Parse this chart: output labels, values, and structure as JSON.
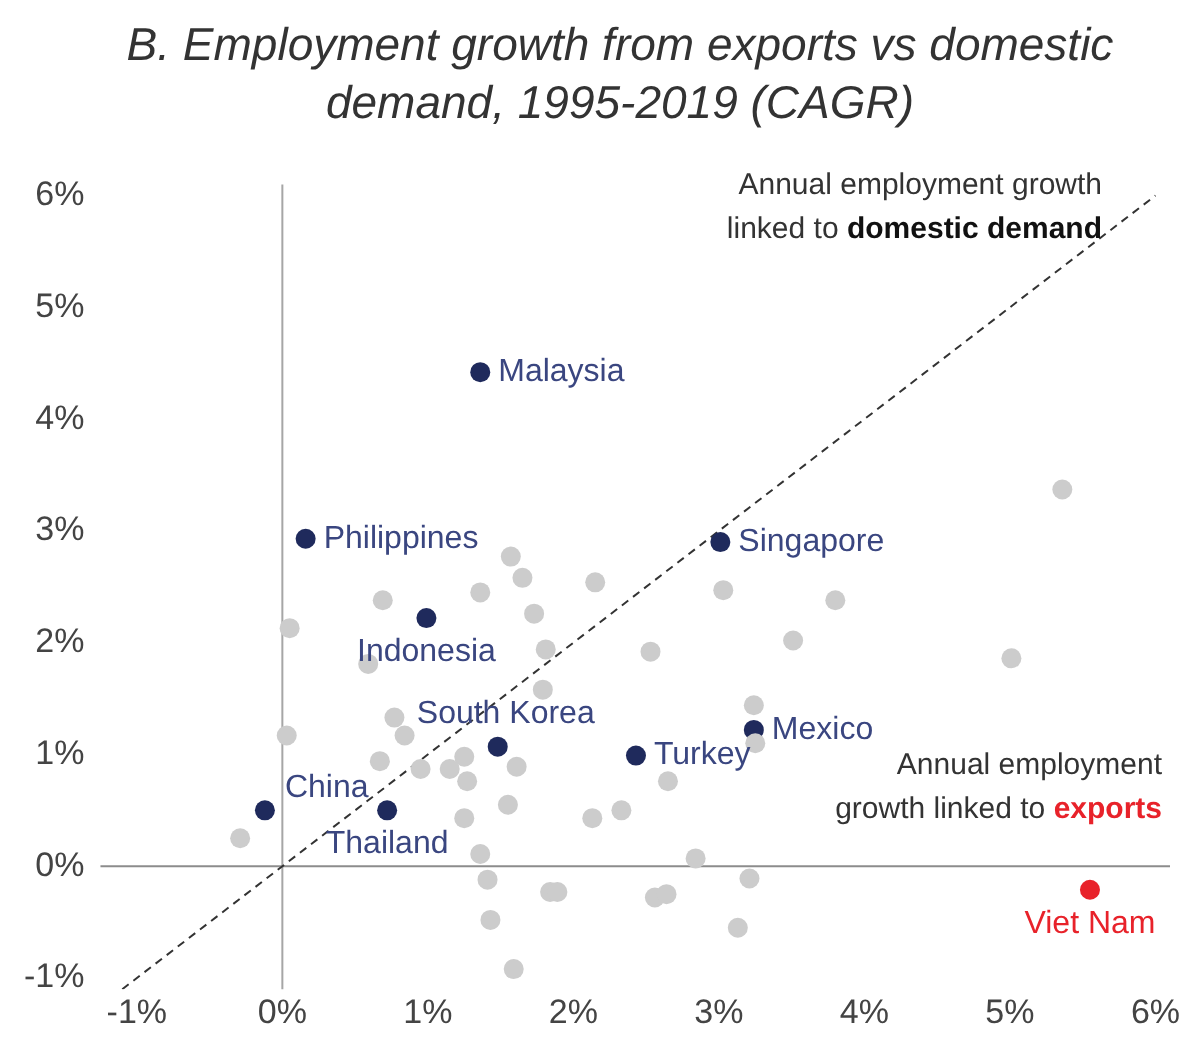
{
  "chart_data": {
    "type": "scatter",
    "title": "B. Employment growth from exports vs domestic demand, 1995-2019 (CAGR)",
    "annotations": [
      "Annual employment growth linked to domestic demand",
      "Annual employment growth linked to exports"
    ],
    "xlim": [
      -1.25,
      6.1
    ],
    "ylim": [
      -1.1,
      6.1
    ],
    "xticks": [
      {
        "value": -1,
        "label": "-1%"
      },
      {
        "value": 0,
        "label": "0%"
      },
      {
        "value": 1,
        "label": "1%"
      },
      {
        "value": 2,
        "label": "2%"
      },
      {
        "value": 3,
        "label": "3%"
      },
      {
        "value": 4,
        "label": "4%"
      },
      {
        "value": 5,
        "label": "5%"
      },
      {
        "value": 6,
        "label": "6%"
      }
    ],
    "yticks": [
      {
        "value": -1,
        "label": "-1%"
      },
      {
        "value": 0,
        "label": "0%"
      },
      {
        "value": 1,
        "label": "1%"
      },
      {
        "value": 2,
        "label": "2%"
      },
      {
        "value": 3,
        "label": "3%"
      },
      {
        "value": 4,
        "label": "4%"
      },
      {
        "value": 5,
        "label": "5%"
      },
      {
        "value": 6,
        "label": "6%"
      }
    ],
    "grid": false,
    "legend": false,
    "marker": "circle",
    "ref_lines": [
      {
        "axis": "x",
        "value": 0,
        "color": "#a6a6a6"
      },
      {
        "axis": "y",
        "value": 0,
        "color": "#8c8c8c"
      }
    ],
    "series": [
      {
        "type": "line",
        "color": "#333333",
        "line_style": "dashed",
        "marker": "none",
        "x": [
          -1.1,
          6
        ],
        "values": [
          -1.1,
          6
        ]
      },
      {
        "color": "#cccccc",
        "x": [
          1.57,
          1.65,
          2.15,
          1.36,
          0.69,
          1.73,
          0.05,
          1.81,
          0.59,
          1.79,
          0.77,
          0.03,
          0.84,
          0.67,
          0.95,
          1.15,
          1.25,
          1.61,
          1.27,
          1.55,
          1.25,
          2.13,
          2.33,
          -0.29,
          1.36,
          1.41,
          1.84,
          1.89,
          1.43,
          1.59,
          5.36,
          3.03,
          3.8,
          3.51,
          2.53,
          5.01,
          3.24,
          3.25,
          2.65,
          2.84,
          3.21,
          2.56,
          2.64,
          3.13
        ],
        "values": [
          2.77,
          2.58,
          2.54,
          2.45,
          2.38,
          2.26,
          2.13,
          1.94,
          1.81,
          1.58,
          1.33,
          1.17,
          1.17,
          0.94,
          0.87,
          0.87,
          0.98,
          0.89,
          0.76,
          0.55,
          0.43,
          0.43,
          0.5,
          0.25,
          0.11,
          -0.12,
          -0.23,
          -0.23,
          -0.48,
          -0.92,
          3.37,
          2.47,
          2.38,
          2.02,
          1.92,
          1.86,
          1.44,
          1.1,
          0.76,
          0.07,
          -0.11,
          -0.28,
          -0.25,
          -0.55
        ]
      },
      {
        "name": "Malaysia",
        "color": "#1f2a5c",
        "x": [
          1.36
        ],
        "values": [
          4.42
        ]
      },
      {
        "name": "Philippines",
        "color": "#1f2a5c",
        "x": [
          0.16
        ],
        "values": [
          2.93
        ]
      },
      {
        "name": "Indonesia",
        "color": "#1f2a5c",
        "x": [
          0.99
        ],
        "values": [
          2.22
        ]
      },
      {
        "name": "Singapore",
        "color": "#1f2a5c",
        "x": [
          3.01
        ],
        "values": [
          2.9
        ]
      },
      {
        "name": "South Korea",
        "color": "#1f2a5c",
        "x": [
          1.48
        ],
        "values": [
          1.07
        ]
      },
      {
        "name": "Mexico",
        "color": "#1f2a5c",
        "x": [
          3.24
        ],
        "values": [
          1.22
        ]
      },
      {
        "name": "Turkey",
        "color": "#1f2a5c",
        "x": [
          2.43
        ],
        "values": [
          0.99
        ]
      },
      {
        "name": "China",
        "color": "#1f2a5c",
        "x": [
          -0.12
        ],
        "values": [
          0.5
        ]
      },
      {
        "name": "Thailand",
        "color": "#1f2a5c",
        "x": [
          0.72
        ],
        "values": [
          0.5
        ]
      },
      {
        "name": "Viet Nam",
        "color": "#e8222a",
        "x": [
          5.55
        ],
        "values": [
          -0.21
        ]
      }
    ]
  }
}
